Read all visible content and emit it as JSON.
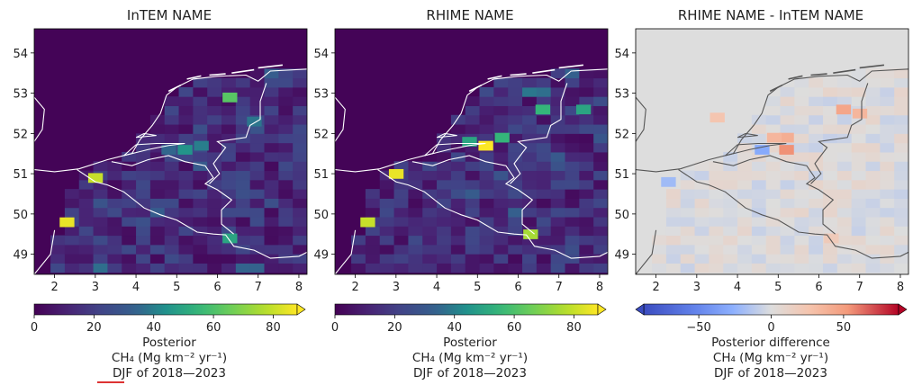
{
  "chart_data": [
    {
      "type": "heatmap",
      "title": "InTEM NAME",
      "x_ticks": [
        2,
        3,
        4,
        5,
        6,
        7,
        8
      ],
      "y_ticks": [
        49,
        50,
        51,
        52,
        53,
        54
      ],
      "xlim": [
        1.5,
        8.2
      ],
      "ylim": [
        48.5,
        54.6
      ],
      "colormap": "viridis",
      "colorbar": {
        "range": [
          0,
          88
        ],
        "ticks": [
          0,
          20,
          40,
          60,
          80
        ],
        "extend": "max",
        "label_lines": [
          "Posterior",
          "CH₄ (Mg km⁻² yr⁻¹)",
          "DJF of 2018—2023"
        ]
      },
      "hotspots": [
        {
          "lon": 3.0,
          "lat": 50.9,
          "value": 80
        },
        {
          "lon": 2.3,
          "lat": 49.8,
          "value": 85
        },
        {
          "lon": 6.3,
          "lat": 52.9,
          "value": 62
        },
        {
          "lon": 5.2,
          "lat": 51.6,
          "value": 45
        },
        {
          "lon": 6.3,
          "lat": 49.4,
          "value": 50
        },
        {
          "lon": 5.6,
          "lat": 51.7,
          "value": 40
        },
        {
          "lon": 4.8,
          "lat": 51.6,
          "value": 35
        },
        {
          "lon": 6.9,
          "lat": 52.3,
          "value": 38
        }
      ]
    },
    {
      "type": "heatmap",
      "title": "RHIME NAME",
      "x_ticks": [
        2,
        3,
        4,
        5,
        6,
        7,
        8
      ],
      "y_ticks": [
        49,
        50,
        51,
        52,
        53,
        54
      ],
      "xlim": [
        1.5,
        8.2
      ],
      "ylim": [
        48.5,
        54.6
      ],
      "colormap": "viridis",
      "colorbar": {
        "range": [
          0,
          88
        ],
        "ticks": [
          0,
          20,
          40,
          60,
          80
        ],
        "extend": "max",
        "label_lines": [
          "Posterior",
          "CH₄ (Mg km⁻² yr⁻¹)",
          "DJF of 2018—2023"
        ]
      },
      "hotspots": [
        {
          "lon": 5.2,
          "lat": 51.7,
          "value": 88
        },
        {
          "lon": 3.0,
          "lat": 51.0,
          "value": 85
        },
        {
          "lon": 2.3,
          "lat": 49.8,
          "value": 80
        },
        {
          "lon": 6.3,
          "lat": 49.5,
          "value": 75
        },
        {
          "lon": 5.6,
          "lat": 51.9,
          "value": 55
        },
        {
          "lon": 4.8,
          "lat": 51.8,
          "value": 50
        },
        {
          "lon": 6.6,
          "lat": 52.6,
          "value": 55
        },
        {
          "lon": 7.6,
          "lat": 52.6,
          "value": 50
        }
      ]
    },
    {
      "type": "heatmap",
      "title": "RHIME NAME - InTEM NAME",
      "x_ticks": [
        2,
        3,
        4,
        5,
        6,
        7,
        8
      ],
      "y_ticks": [
        49,
        50,
        51,
        52,
        53,
        54
      ],
      "xlim": [
        1.5,
        8.2
      ],
      "ylim": [
        48.5,
        54.6
      ],
      "colormap": "coolwarm",
      "colorbar": {
        "range": [
          -88,
          88
        ],
        "ticks": [
          -50,
          0,
          50
        ],
        "tick_labels": [
          "−50",
          "0",
          "50"
        ],
        "extend": "both",
        "label_lines": [
          "Posterior difference",
          "CH₄ (Mg km⁻² yr⁻¹)",
          "DJF of 2018—2023"
        ]
      },
      "hotspots": [
        {
          "lon": 5.2,
          "lat": 51.6,
          "value": 55
        },
        {
          "lon": 5.2,
          "lat": 51.9,
          "value": 40
        },
        {
          "lon": 4.9,
          "lat": 51.9,
          "value": 35
        },
        {
          "lon": 6.6,
          "lat": 52.6,
          "value": 45
        },
        {
          "lon": 7.0,
          "lat": 52.5,
          "value": 35
        },
        {
          "lon": 3.5,
          "lat": 52.4,
          "value": 25
        },
        {
          "lon": 4.6,
          "lat": 51.6,
          "value": -30
        },
        {
          "lon": 2.3,
          "lat": 50.8,
          "value": -20
        },
        {
          "lon": 6.3,
          "lat": 49.4,
          "value": 20
        }
      ]
    }
  ]
}
